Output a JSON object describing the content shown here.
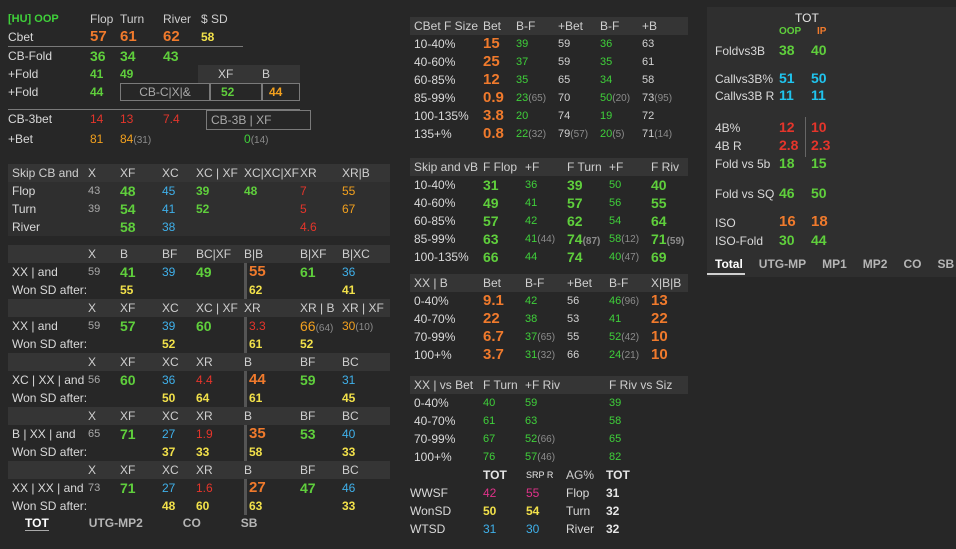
{
  "p1": {
    "title": "[HU] OOP",
    "col_flop": "Flop",
    "col_turn": "Turn",
    "col_river": "River",
    "col_sd": "$ SD",
    "cbet_label": "Cbet",
    "cbet_flop": "57",
    "cbet_turn": "61",
    "cbet_river": "62",
    "cbet_sd": "58",
    "cbfold_label": "CB-Fold",
    "cbfold_flop": "36",
    "cbfold_turn": "34",
    "cbfold_river": "43",
    "fold1_label": "+Fold",
    "fold1_flop": "41",
    "fold1_turn": "49",
    "fold1_xf": "XF",
    "fold1_b": "B",
    "fold2_label": "+Fold",
    "fold2_flop": "44",
    "fold2_box": "CB-C|X|&",
    "fold2_xf": "52",
    "fold2_b": "44",
    "cb3_label": "CB-3bet",
    "cb3_flop": "14",
    "cb3_turn": "13",
    "cb3_river": "7.4",
    "cb3_box": "CB-3B | XF",
    "bet_label": "+Bet",
    "bet_flop": "81",
    "bet_turn": "84",
    "bet_turn_n": "(31)",
    "bet_box": "0",
    "bet_box_n": "(14)"
  },
  "p2": {
    "h": [
      "Skip CB and",
      "X",
      "XF",
      "XC",
      "XC | XF",
      "XC|XC|XF",
      "XR",
      "XR|B"
    ],
    "rows": [
      [
        "Flop",
        "43",
        "48",
        "45",
        "39",
        "48",
        "7",
        "55"
      ],
      [
        "Turn",
        "39",
        "54",
        "41",
        "52",
        "",
        "5",
        "67"
      ],
      [
        "River",
        "",
        "58",
        "38",
        "",
        "",
        "4.6",
        ""
      ]
    ]
  },
  "p3": {
    "blocks": [
      {
        "h": [
          "X",
          "B",
          "BF",
          "BC|XF",
          "B|B",
          "B|XF",
          "B|XC"
        ],
        "r1_label": "XX | and",
        "r1": [
          "59",
          "41",
          "39",
          "49",
          "55",
          "61",
          "36"
        ],
        "r2_label": "Won SD after:",
        "r2": [
          "",
          "55",
          "",
          "",
          "62",
          "",
          "41"
        ]
      },
      {
        "h": [
          "X",
          "XF",
          "XC",
          "XC | XF",
          "XR",
          "XR | B",
          "XR | XF"
        ],
        "r1_label": "XX | and",
        "r1": [
          "59",
          "57",
          "39",
          "60",
          "3.3",
          "66",
          "30"
        ],
        "r1_n": [
          "",
          "",
          "",
          "",
          "",
          "(64)",
          "(10)"
        ],
        "r2_label": "Won SD after:",
        "r2": [
          "",
          "",
          "52",
          "",
          "61",
          "52",
          ""
        ]
      },
      {
        "h": [
          "X",
          "XF",
          "XC",
          "XR",
          "B",
          "BF",
          "BC"
        ],
        "r1_label": "XC | XX | and",
        "r1": [
          "56",
          "60",
          "36",
          "4.4",
          "44",
          "59",
          "31"
        ],
        "r2_label": "Won SD after:",
        "r2": [
          "",
          "",
          "50",
          "64",
          "61",
          "",
          "45"
        ]
      },
      {
        "h": [
          "X",
          "XF",
          "XC",
          "XR",
          "B",
          "BF",
          "BC"
        ],
        "r1_label": "B | XX | and",
        "r1": [
          "65",
          "71",
          "27",
          "1.9",
          "35",
          "53",
          "40"
        ],
        "r2_label": "Won SD after:",
        "r2": [
          "",
          "",
          "37",
          "33",
          "58",
          "",
          "33"
        ]
      },
      {
        "h": [
          "X",
          "XF",
          "XC",
          "XR",
          "B",
          "BF",
          "BC"
        ],
        "r1_label": "XX | XX | and",
        "r1": [
          "73",
          "71",
          "27",
          "1.6",
          "27",
          "47",
          "46"
        ],
        "r2_label": "Won SD after:",
        "r2": [
          "",
          "",
          "48",
          "60",
          "63",
          "",
          "33"
        ]
      }
    ]
  },
  "bottom_tabs": [
    "TOT",
    "UTG-MP2",
    "CO",
    "SB"
  ],
  "m1": {
    "h": [
      "CBet F Size",
      "Bet",
      "B-F",
      "+Bet",
      "B-F",
      "+B"
    ],
    "rows": [
      [
        "10-40%",
        "15",
        "39",
        "59",
        "36",
        "63"
      ],
      [
        "40-60%",
        "25",
        "37",
        "59",
        "35",
        "61"
      ],
      [
        "60-85%",
        "12",
        "35",
        "65",
        "34",
        "58"
      ],
      [
        "85-99%",
        "0.9",
        "23",
        "70",
        "50",
        "73"
      ],
      [
        "100-135%",
        "3.8",
        "20",
        "74",
        "19",
        "72"
      ],
      [
        "135+%",
        "0.8",
        "22",
        "79",
        "20",
        "71"
      ]
    ],
    "notes": [
      [
        "",
        "",
        "",
        "",
        "",
        ""
      ],
      [
        "",
        "",
        "",
        "",
        "",
        ""
      ],
      [
        "",
        "",
        "",
        "",
        "",
        ""
      ],
      [
        "",
        "",
        "(65)",
        "",
        "(20)",
        "(95)"
      ],
      [
        "",
        "",
        "",
        "",
        "",
        ""
      ],
      [
        "",
        "",
        "(32)",
        "(57)",
        "(5)",
        "(14)"
      ]
    ]
  },
  "m2": {
    "h": [
      "Skip and vB",
      "F Flop",
      "+F",
      "F Turn",
      "+F",
      "F Riv"
    ],
    "rows": [
      [
        "10-40%",
        "31",
        "36",
        "39",
        "50",
        "40"
      ],
      [
        "40-60%",
        "49",
        "41",
        "57",
        "56",
        "55"
      ],
      [
        "60-85%",
        "57",
        "42",
        "62",
        "54",
        "64"
      ],
      [
        "85-99%",
        "63",
        "41",
        "74",
        "58",
        "71"
      ],
      [
        "100-135%",
        "66",
        "44",
        "74",
        "40",
        "69"
      ]
    ],
    "notes": [
      [
        "",
        "",
        "",
        "",
        "",
        ""
      ],
      [
        "",
        "",
        "",
        "",
        "",
        ""
      ],
      [
        "",
        "",
        "",
        "",
        "",
        ""
      ],
      [
        "",
        "",
        "(44)",
        "(87)",
        "(12)",
        "(59)"
      ],
      [
        "",
        "",
        "",
        "",
        "(47)",
        ""
      ]
    ]
  },
  "m3": {
    "h": [
      "XX | B",
      "Bet",
      "B-F",
      "+Bet",
      "B-F",
      "X|B|B"
    ],
    "rows": [
      [
        "0-40%",
        "9.1",
        "42",
        "56",
        "46",
        "13"
      ],
      [
        "40-70%",
        "22",
        "38",
        "53",
        "41",
        "22"
      ],
      [
        "70-99%",
        "6.7",
        "37",
        "55",
        "52",
        "10"
      ],
      [
        "100+%",
        "3.7",
        "31",
        "66",
        "24",
        "10"
      ]
    ],
    "notes": [
      [
        "",
        "",
        "",
        "",
        "(96)",
        ""
      ],
      [
        "",
        "",
        "",
        "",
        "",
        ""
      ],
      [
        "",
        "",
        "(65)",
        "",
        "(42)",
        ""
      ],
      [
        "",
        "",
        "(32)",
        "",
        "(21)",
        ""
      ]
    ]
  },
  "m4": {
    "h": [
      "XX | vs Bet",
      "F Turn",
      "+F Riv",
      "F Riv vs Siz"
    ],
    "rows": [
      [
        "0-40%",
        "40",
        "59",
        "39"
      ],
      [
        "40-70%",
        "61",
        "63",
        "58"
      ],
      [
        "70-99%",
        "67",
        "52",
        "65"
      ],
      [
        "100+%",
        "76",
        "57",
        "82"
      ]
    ],
    "notes": [
      [
        "",
        "",
        "",
        ""
      ],
      [
        "",
        "",
        "",
        ""
      ],
      [
        "",
        "",
        "(66)",
        ""
      ],
      [
        "",
        "",
        "(46)",
        ""
      ]
    ]
  },
  "m5": {
    "h_tot": "TOT",
    "h_srp": "SRP R",
    "h_ag": "AG%",
    "h_tot2": "TOT",
    "rows": [
      {
        "label": "WWSF",
        "tot": "42",
        "srp": "55",
        "ag_label": "Flop",
        "ag": "31"
      },
      {
        "label": "WonSD",
        "tot": "50",
        "srp": "54",
        "ag_label": "Turn",
        "ag": "32"
      },
      {
        "label": "WTSD",
        "tot": "31",
        "srp": "30",
        "ag_label": "River",
        "ag": "32"
      }
    ]
  },
  "right": {
    "title": "TOT",
    "oop": "OOP",
    "ip": "IP",
    "rows": [
      {
        "label": "Foldvs3B",
        "oop": "38",
        "ip": "40"
      },
      {
        "label": "Callvs3B%",
        "oop": "51",
        "ip": "50"
      },
      {
        "label": "Callvs3B R",
        "oop": "11",
        "ip": "11"
      },
      {
        "label": "4B%",
        "oop": "12",
        "ip": "10"
      },
      {
        "label": "4B R",
        "oop": "2.8",
        "ip": "2.3"
      },
      {
        "label": "Fold vs 5b",
        "oop": "18",
        "ip": "15"
      },
      {
        "label": "Fold vs SQ",
        "oop": "46",
        "ip": "50"
      },
      {
        "label": "ISO",
        "oop": "16",
        "ip": "18"
      },
      {
        "label": "ISO-Fold",
        "oop": "30",
        "ip": "44"
      }
    ],
    "tabs": [
      "Total",
      "UTG-MP",
      "MP1",
      "MP2",
      "CO",
      "SB"
    ]
  }
}
